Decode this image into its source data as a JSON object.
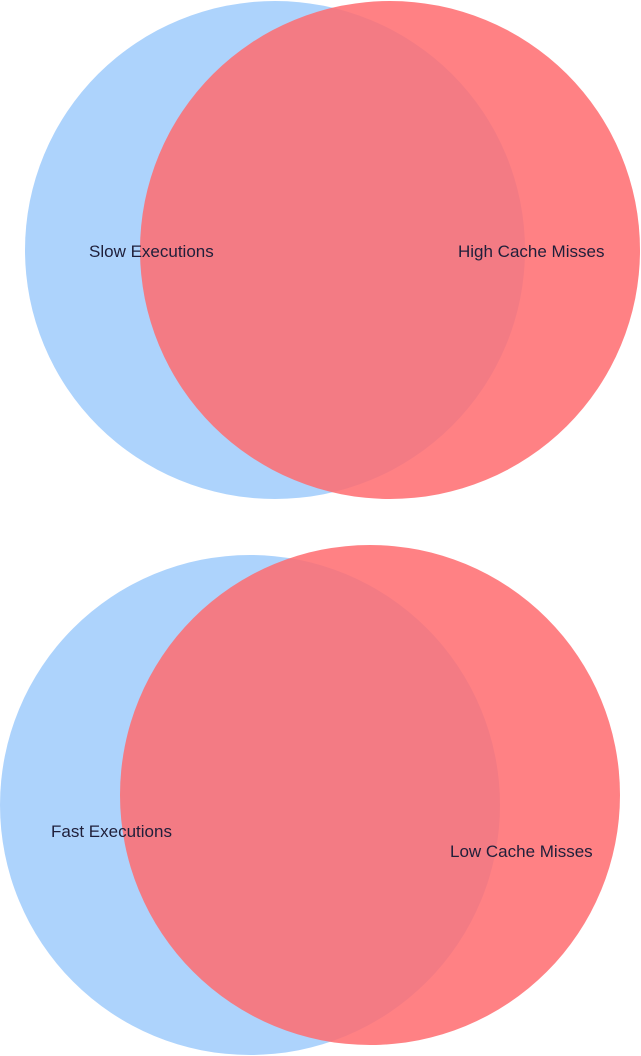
{
  "diagrams": [
    {
      "sets": [
        {
          "label": "Slow Executions",
          "color": "#9fcbfb",
          "opacity": 0.85
        },
        {
          "label": "High Cache Misses",
          "color": "#ff6b6e",
          "opacity": 0.85
        }
      ]
    },
    {
      "sets": [
        {
          "label": "Fast Executions",
          "color": "#9fcbfb",
          "opacity": 0.85
        },
        {
          "label": "Low Cache Misses",
          "color": "#ff6b6e",
          "opacity": 0.85
        }
      ]
    }
  ],
  "label_colors": {
    "dark": "#1f1f3a"
  }
}
